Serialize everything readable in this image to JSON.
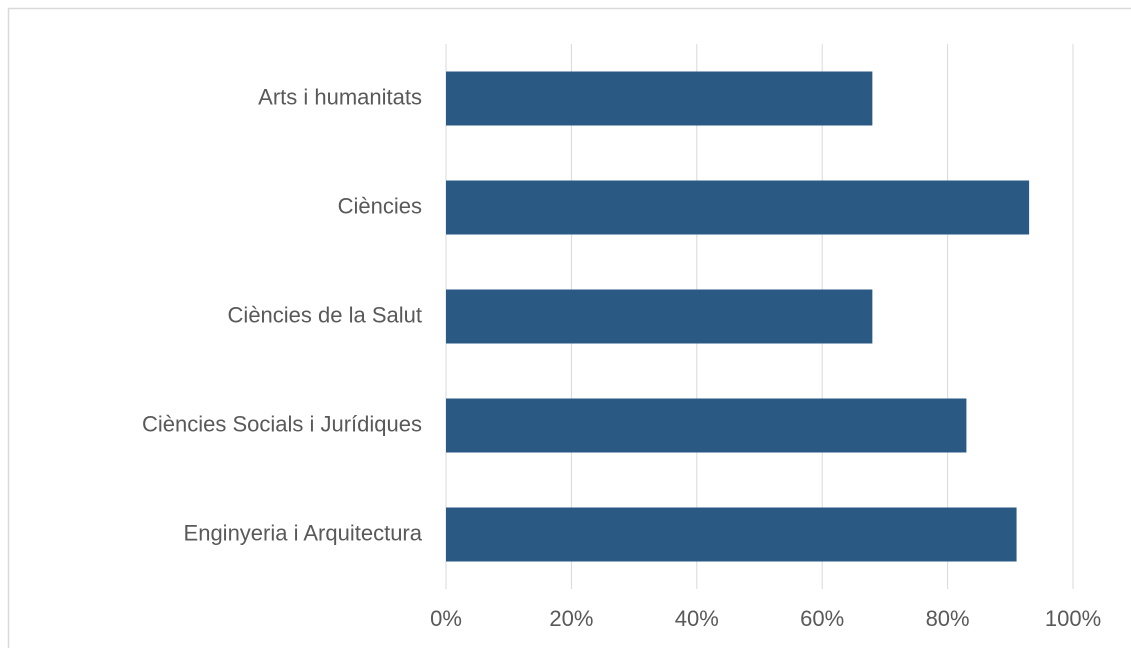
{
  "chart_data": {
    "type": "bar",
    "orientation": "horizontal",
    "categories": [
      "Arts i humanitats",
      "Ciències",
      "Ciències de la Salut",
      "Ciències Socials i Jurídiques",
      "Enginyeria i Arquitectura"
    ],
    "values": [
      68,
      93,
      68,
      83,
      91
    ],
    "color": "#2a5a84",
    "xlim": [
      0,
      100
    ],
    "xticks": [
      {
        "value": 0,
        "label": "0%"
      },
      {
        "value": 20,
        "label": "20%"
      },
      {
        "value": 40,
        "label": "40%"
      },
      {
        "value": 60,
        "label": "60%"
      },
      {
        "value": 80,
        "label": "80%"
      },
      {
        "value": 100,
        "label": "100%"
      }
    ],
    "grid": true
  }
}
